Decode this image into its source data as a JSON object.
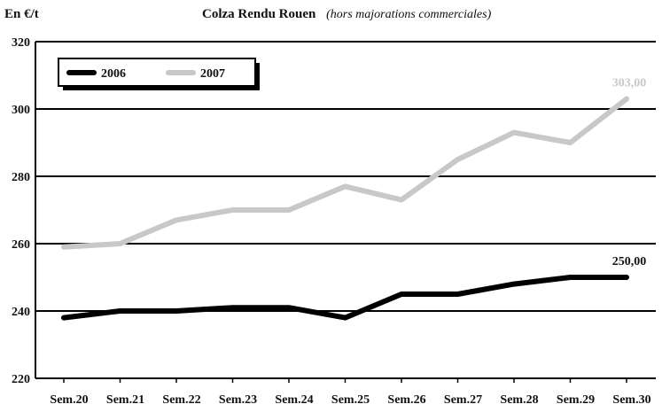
{
  "chart_data": {
    "type": "line",
    "title": "Colza Rendu Rouen",
    "subtitle": "(hors majorations commerciales)",
    "ylabel": "En €/t",
    "xlabel": "",
    "ylim": [
      220,
      320
    ],
    "yticks": [
      220,
      240,
      260,
      280,
      300,
      320
    ],
    "grid": true,
    "legend": "top-left",
    "categories": [
      "Sem.20",
      "Sem.21",
      "Sem.22",
      "Sem.23",
      "Sem.24",
      "Sem.25",
      "Sem.26",
      "Sem.27",
      "Sem.28",
      "Sem.29",
      "Sem.30"
    ],
    "series": [
      {
        "name": "2006",
        "color": "#000000",
        "values": [
          238,
          240,
          240,
          241,
          241,
          238,
          245,
          245,
          248,
          250,
          250
        ],
        "end_label": "250,00"
      },
      {
        "name": "2007",
        "color": "#c8c8c8",
        "values": [
          259,
          260,
          267,
          270,
          270,
          277,
          273,
          285,
          293,
          290,
          303
        ],
        "end_label": "303,00"
      }
    ]
  }
}
